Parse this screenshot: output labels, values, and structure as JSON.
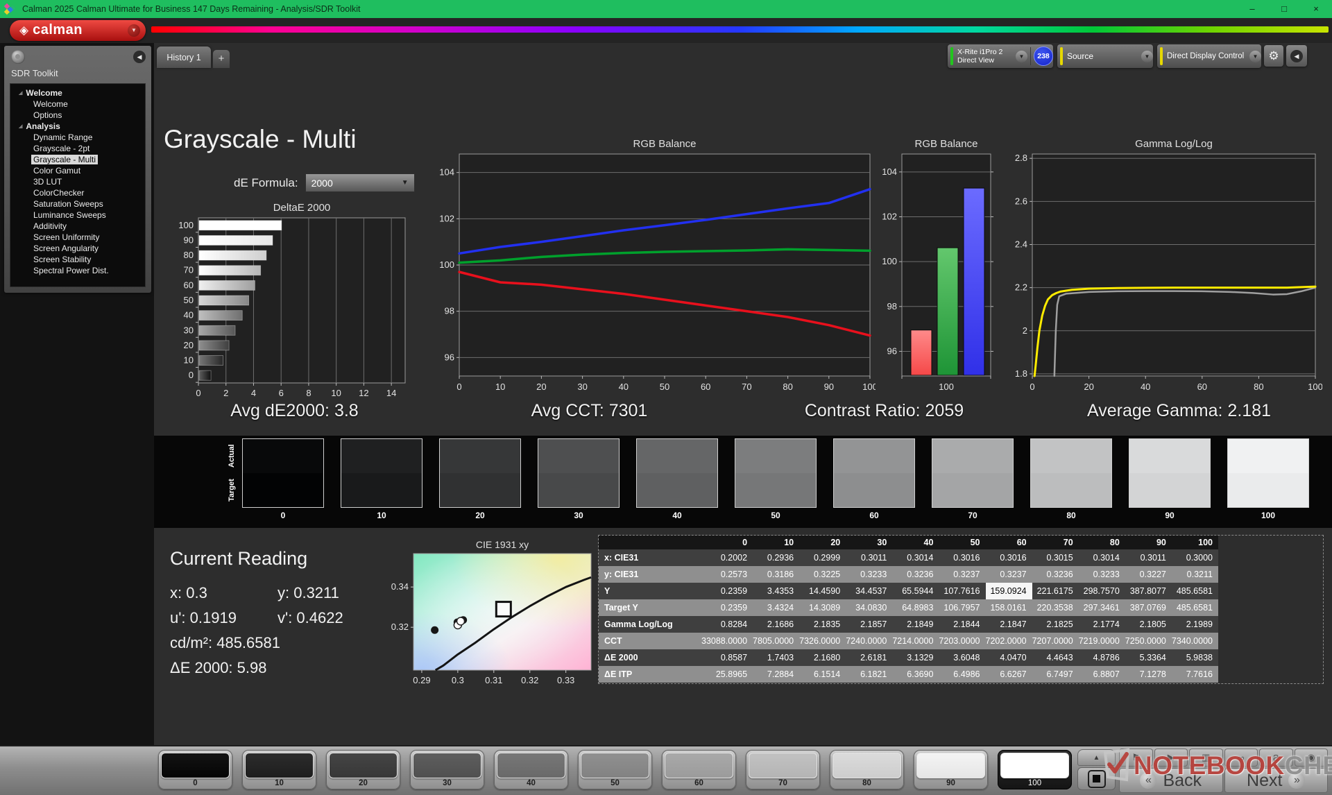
{
  "window": {
    "title": "Calman 2025 Calman Ultimate for Business 147 Days Remaining  - Analysis/SDR Toolkit",
    "minimize": "–",
    "restore": "□",
    "close": "×"
  },
  "brand": {
    "word": "calman"
  },
  "sidebar": {
    "title": "SDR Toolkit",
    "groups": [
      {
        "label": "Welcome",
        "items": [
          {
            "label": "Welcome"
          },
          {
            "label": "Options"
          }
        ]
      },
      {
        "label": "Analysis",
        "items": [
          {
            "label": "Dynamic Range"
          },
          {
            "label": "Grayscale - 2pt"
          },
          {
            "label": "Grayscale - Multi",
            "selected": true
          },
          {
            "label": "Color Gamut"
          },
          {
            "label": "3D LUT"
          },
          {
            "label": "ColorChecker"
          },
          {
            "label": "Saturation Sweeps"
          },
          {
            "label": "Luminance Sweeps"
          },
          {
            "label": "Additivity"
          },
          {
            "label": "Screen Uniformity"
          },
          {
            "label": "Screen Angularity"
          },
          {
            "label": "Screen Stability"
          },
          {
            "label": "Spectral Power Dist."
          }
        ]
      }
    ]
  },
  "topbar": {
    "tab": "History 1",
    "add_tab": "+",
    "meter": {
      "line1": "X-Rite i1Pro 2",
      "line2": "Direct View",
      "badge": "238"
    },
    "source": "Source",
    "display_control": "Direct Display Control"
  },
  "page": {
    "title": "Grayscale - Multi",
    "de_formula_label": "dE Formula:",
    "de_formula_value": "2000"
  },
  "stats": {
    "avg_de": "Avg dE2000: 3.8",
    "avg_cct": "Avg CCT: 7301",
    "contrast": "Contrast Ratio: 2059",
    "avg_gamma": "Average Gamma: 2.181"
  },
  "swatch_strip": {
    "row_label_top": "Actual",
    "row_label_bottom": "Target",
    "labels": [
      "0",
      "10",
      "20",
      "30",
      "40",
      "50",
      "60",
      "70",
      "80",
      "90",
      "100"
    ]
  },
  "current_reading": {
    "title": "Current Reading",
    "x": "x: 0.3",
    "y": "y: 0.3211",
    "u": "u': 0.1919",
    "v": "v': 0.4622",
    "cd": "cd/m²: 485.6581",
    "de": "ΔE 2000: 5.98"
  },
  "table": {
    "columns": [
      "0",
      "10",
      "20",
      "30",
      "40",
      "50",
      "60",
      "70",
      "80",
      "90",
      "100"
    ],
    "rows": [
      {
        "label": "x: CIE31",
        "values": [
          "0.2002",
          "0.2936",
          "0.2999",
          "0.3011",
          "0.3014",
          "0.3016",
          "0.3016",
          "0.3015",
          "0.3014",
          "0.3011",
          "0.3000"
        ]
      },
      {
        "label": "y: CIE31",
        "values": [
          "0.2573",
          "0.3186",
          "0.3225",
          "0.3233",
          "0.3236",
          "0.3237",
          "0.3237",
          "0.3236",
          "0.3233",
          "0.3227",
          "0.3211"
        ]
      },
      {
        "label": "Y",
        "values": [
          "0.2359",
          "3.4353",
          "14.4590",
          "34.4537",
          "65.5944",
          "107.7616",
          "159.0924",
          "221.6175",
          "298.7570",
          "387.8077",
          "485.6581"
        ],
        "highlight_col": 6
      },
      {
        "label": "Target Y",
        "values": [
          "0.2359",
          "3.4324",
          "14.3089",
          "34.0830",
          "64.8983",
          "106.7957",
          "158.0161",
          "220.3538",
          "297.3461",
          "387.0769",
          "485.6581"
        ]
      },
      {
        "label": "Gamma Log/Log",
        "values": [
          "0.8284",
          "2.1686",
          "2.1835",
          "2.1857",
          "2.1849",
          "2.1844",
          "2.1847",
          "2.1825",
          "2.1774",
          "2.1805",
          "2.1989"
        ]
      },
      {
        "label": "CCT",
        "values": [
          "33088.0000",
          "7805.0000",
          "7326.0000",
          "7240.0000",
          "7214.0000",
          "7203.0000",
          "7202.0000",
          "7207.0000",
          "7219.0000",
          "7250.0000",
          "7340.0000"
        ]
      },
      {
        "label": "ΔE 2000",
        "values": [
          "0.8587",
          "1.7403",
          "2.1680",
          "2.6181",
          "3.1329",
          "3.6048",
          "4.0470",
          "4.4643",
          "4.8786",
          "5.3364",
          "5.9838"
        ]
      },
      {
        "label": "ΔE ITP",
        "values": [
          "25.8965",
          "7.2884",
          "6.1514",
          "6.1821",
          "6.3690",
          "6.4986",
          "6.6267",
          "6.7497",
          "6.8807",
          "7.1278",
          "7.7616"
        ]
      }
    ]
  },
  "bottom_bar": {
    "patches": [
      "0",
      "10",
      "20",
      "30",
      "40",
      "50",
      "60",
      "70",
      "80",
      "90",
      "100"
    ],
    "selected": "100",
    "back": "Back",
    "next": "Next"
  },
  "watermark": {
    "part1": "NOTEBOOK",
    "part2": "CHECK"
  },
  "icons": {
    "logo_glyph": "◈",
    "chevron_down": "▼",
    "gear": "⚙",
    "collapse_left": "◀",
    "expander": "◢",
    "up_arrow": "▲",
    "back_chevron": "«",
    "next_chevron": "»",
    "tool_icons": [
      "⚑",
      "▶",
      "▥",
      "∞",
      "Ƨ",
      "◉"
    ]
  },
  "colors": {
    "titlebar_green": "#1fbe5f",
    "brand_red": "#b81414",
    "meter_bar": "#22c51e",
    "source_bar": "#e6d800",
    "badge_blue": "#1a2fd8"
  },
  "chart_data": [
    {
      "id": "deltae_bars",
      "type": "bar",
      "orientation": "horizontal",
      "title": "DeltaE 2000",
      "categories": [
        0,
        10,
        20,
        30,
        40,
        50,
        60,
        70,
        80,
        90,
        100
      ],
      "values": [
        0.8587,
        1.7403,
        2.168,
        2.6181,
        3.1329,
        3.6048,
        4.047,
        4.4643,
        4.8786,
        5.3364,
        5.9838
      ],
      "xlim": [
        0,
        15
      ],
      "xticks": [
        0,
        2,
        4,
        6,
        8,
        10,
        12,
        14
      ],
      "grid": true
    },
    {
      "id": "rgb_balance_lines",
      "type": "line",
      "title": "RGB Balance",
      "x": [
        0,
        10,
        20,
        30,
        40,
        50,
        60,
        70,
        80,
        90,
        100
      ],
      "ylim": [
        95.2,
        104.8
      ],
      "yticks": [
        96,
        98,
        100,
        102,
        104
      ],
      "xticks": [
        0,
        10,
        20,
        30,
        40,
        50,
        60,
        70,
        80,
        90,
        100
      ],
      "series": [
        {
          "name": "Red",
          "color": "#e8101c",
          "values": [
            99.7,
            99.25,
            99.15,
            98.95,
            98.75,
            98.5,
            98.25,
            98.0,
            97.75,
            97.4,
            96.95
          ]
        },
        {
          "name": "Green",
          "color": "#00a02c",
          "values": [
            100.1,
            100.2,
            100.35,
            100.45,
            100.52,
            100.57,
            100.6,
            100.63,
            100.68,
            100.65,
            100.62
          ]
        },
        {
          "name": "Blue",
          "color": "#2230f0",
          "values": [
            100.5,
            100.78,
            101.0,
            101.25,
            101.5,
            101.72,
            101.95,
            102.2,
            102.45,
            102.68,
            103.28
          ]
        }
      ]
    },
    {
      "id": "rgb_balance_bars",
      "type": "bar",
      "title": "RGB Balance",
      "categories": [
        "100"
      ],
      "ylim": [
        94.9,
        104.8
      ],
      "yticks": [
        96,
        98,
        100,
        102,
        104
      ],
      "series": [
        {
          "name": "Red",
          "value": 96.95,
          "fill": [
            "#ff8a8a",
            "#f54848"
          ]
        },
        {
          "name": "Green",
          "value": 100.62,
          "fill": [
            "#63c76d",
            "#1e9436"
          ]
        },
        {
          "name": "Blue",
          "value": 103.28,
          "fill": [
            "#6b6bff",
            "#3030e8"
          ]
        }
      ]
    },
    {
      "id": "gamma_loglog",
      "type": "line",
      "title": "Gamma Log/Log",
      "ylim": [
        1.79,
        2.82
      ],
      "yticks": [
        1.8,
        2,
        2.2,
        2.4,
        2.6,
        2.8
      ],
      "ytick_labels": [
        "1.8",
        "2",
        "2.2",
        "2.4",
        "2.6",
        "2.8"
      ],
      "xticks": [
        0,
        20,
        40,
        60,
        80,
        100
      ],
      "series": [
        {
          "name": "Target",
          "color": "#a0a0a0",
          "width": 2.5,
          "points": [
            [
              7.8,
              1.79
            ],
            [
              8.3,
              2.0
            ],
            [
              8.8,
              2.12
            ],
            [
              9.5,
              2.16
            ],
            [
              12,
              2.172
            ],
            [
              20,
              2.18
            ],
            [
              30,
              2.183
            ],
            [
              40,
              2.184
            ],
            [
              50,
              2.184
            ],
            [
              60,
              2.183
            ],
            [
              70,
              2.18
            ],
            [
              78,
              2.175
            ],
            [
              85,
              2.168
            ],
            [
              90,
              2.17
            ],
            [
              95,
              2.183
            ],
            [
              100,
              2.2
            ]
          ]
        },
        {
          "name": "Measured",
          "color": "#ffec00",
          "width": 3,
          "points": [
            [
              0.8,
              1.79
            ],
            [
              1.2,
              1.84
            ],
            [
              1.8,
              1.92
            ],
            [
              2.5,
              2.0
            ],
            [
              3.5,
              2.07
            ],
            [
              4.5,
              2.115
            ],
            [
              5.5,
              2.145
            ],
            [
              7,
              2.165
            ],
            [
              8.5,
              2.175
            ],
            [
              10,
              2.182
            ],
            [
              14,
              2.19
            ],
            [
              20,
              2.195
            ],
            [
              30,
              2.198
            ],
            [
              40,
              2.199
            ],
            [
              50,
              2.2
            ],
            [
              60,
              2.2
            ],
            [
              70,
              2.2
            ],
            [
              80,
              2.2
            ],
            [
              90,
              2.2
            ],
            [
              100,
              2.205
            ]
          ]
        }
      ]
    },
    {
      "id": "cie1931",
      "type": "scatter",
      "title": "CIE 1931 xy",
      "xlim": [
        0.2877,
        0.337
      ],
      "ylim": [
        0.2987,
        0.3566
      ],
      "xticks": [
        0.29,
        0.3,
        0.31,
        0.32,
        0.33
      ],
      "xtick_labels": [
        "0.29",
        "0.3",
        "0.31",
        "0.32",
        "0.33"
      ],
      "yticks": [
        0.32,
        0.34
      ],
      "ytick_labels": [
        "0.32",
        "0.34"
      ],
      "target_square": {
        "x": 0.3127,
        "y": 0.329
      },
      "points_black": [
        [
          0.2936,
          0.3186
        ],
        [
          0.2999,
          0.3225
        ],
        [
          0.3011,
          0.3233
        ],
        [
          0.3015,
          0.3236
        ]
      ],
      "points_white": [
        [
          0.3,
          0.3211
        ],
        [
          0.3008,
          0.323
        ]
      ],
      "locus": [
        [
          0.2938,
          0.2987
        ],
        [
          0.296,
          0.301
        ],
        [
          0.3,
          0.3065
        ],
        [
          0.305,
          0.3125
        ],
        [
          0.31,
          0.319
        ],
        [
          0.315,
          0.325
        ],
        [
          0.32,
          0.3305
        ],
        [
          0.325,
          0.3355
        ],
        [
          0.33,
          0.34
        ],
        [
          0.335,
          0.3435
        ],
        [
          0.337,
          0.3448
        ]
      ]
    }
  ]
}
